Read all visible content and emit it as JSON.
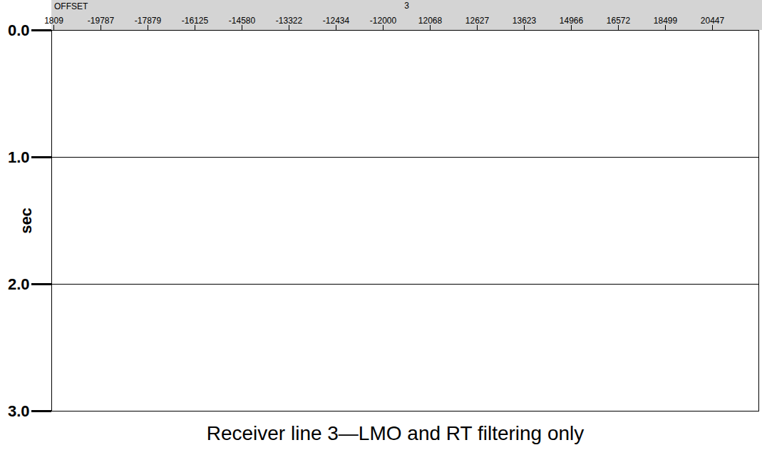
{
  "chart_data": {
    "type": "seismic_gather",
    "xlabel": "OFFSET",
    "annotations": [
      "3"
    ],
    "caption": "Receiver line 3—LMO and RT filtering only",
    "ylabel": "sec",
    "categories": [
      "1809",
      "-19787",
      "-17879",
      "-16125",
      "-14580",
      "-13322",
      "-12434",
      "-12000",
      "12068",
      "12627",
      "13623",
      "14966",
      "16572",
      "18499",
      "20447"
    ],
    "ylim": [
      0,
      3
    ],
    "yticks": [
      {
        "value": 0,
        "label": "0.0"
      },
      {
        "value": 1,
        "label": "1.0"
      },
      {
        "value": 2,
        "label": "2.0"
      },
      {
        "value": 3,
        "label": "3.0"
      }
    ],
    "grid": true
  }
}
